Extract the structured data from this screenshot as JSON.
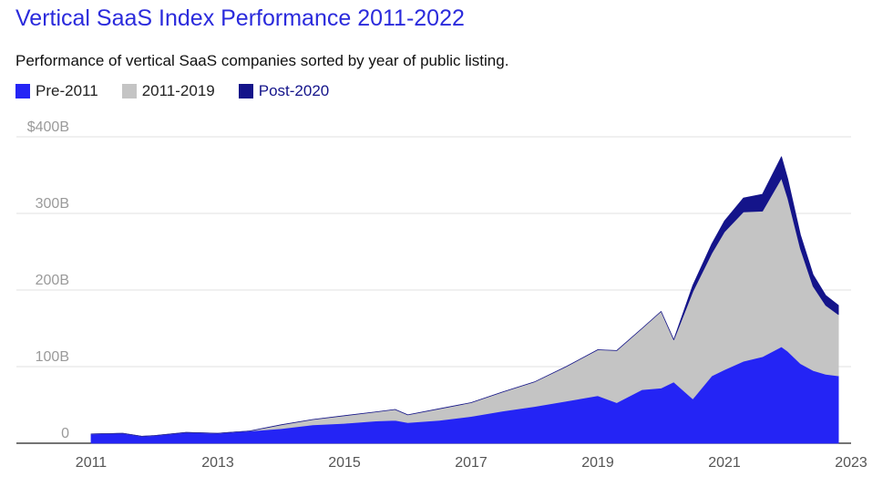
{
  "chart_data": {
    "type": "area",
    "title": "Vertical SaaS Index Performance 2011-2022",
    "subtitle": "Performance of vertical SaaS companies sorted by year of public listing.",
    "xlabel": "",
    "ylabel": "",
    "stacked": true,
    "xlim": [
      2011,
      2023
    ],
    "ylim": [
      0,
      420
    ],
    "y_ticks": [
      0,
      100,
      200,
      300,
      400
    ],
    "y_tick_labels": [
      "0",
      "100B",
      "200B",
      "300B",
      "$400B"
    ],
    "x_ticks": [
      2011,
      2013,
      2015,
      2017,
      2019,
      2021,
      2023
    ],
    "x_tick_labels": [
      "2011",
      "2013",
      "2015",
      "2017",
      "2019",
      "2021",
      "2023"
    ],
    "grid": true,
    "legend_position": "top-left",
    "x": [
      2011.0,
      2011.5,
      2011.8,
      2012.0,
      2012.5,
      2013.0,
      2013.5,
      2014.0,
      2014.5,
      2015.0,
      2015.5,
      2015.8,
      2016.0,
      2016.5,
      2017.0,
      2017.5,
      2018.0,
      2018.5,
      2019.0,
      2019.3,
      2019.7,
      2020.0,
      2020.2,
      2020.5,
      2020.8,
      2021.0,
      2021.3,
      2021.6,
      2021.9,
      2022.0,
      2022.2,
      2022.4,
      2022.6,
      2022.8
    ],
    "series": [
      {
        "name": "Pre-2011",
        "color": "#2424f5",
        "values": [
          12,
          13,
          9,
          10,
          14,
          13,
          16,
          19,
          24,
          26,
          29,
          30,
          27,
          30,
          35,
          42,
          48,
          55,
          62,
          53,
          70,
          72,
          80,
          58,
          88,
          96,
          107,
          113,
          126,
          120,
          104,
          95,
          90,
          88
        ]
      },
      {
        "name": "2011-2019",
        "color": "#c4c4c4",
        "values": [
          0,
          0,
          0,
          0,
          0,
          0,
          0,
          5,
          7,
          10,
          12,
          14,
          10,
          15,
          18,
          25,
          32,
          45,
          60,
          68,
          80,
          100,
          55,
          140,
          160,
          180,
          195,
          190,
          220,
          200,
          150,
          110,
          90,
          80
        ]
      },
      {
        "name": "Post-2020",
        "color": "#14148a",
        "values": [
          0,
          0,
          0,
          0,
          0,
          0,
          0,
          0,
          0,
          0,
          0,
          0,
          0,
          0,
          0,
          0,
          0,
          0,
          0,
          0,
          0,
          0,
          0,
          8,
          12,
          14,
          18,
          22,
          28,
          25,
          18,
          15,
          13,
          12
        ]
      }
    ]
  }
}
